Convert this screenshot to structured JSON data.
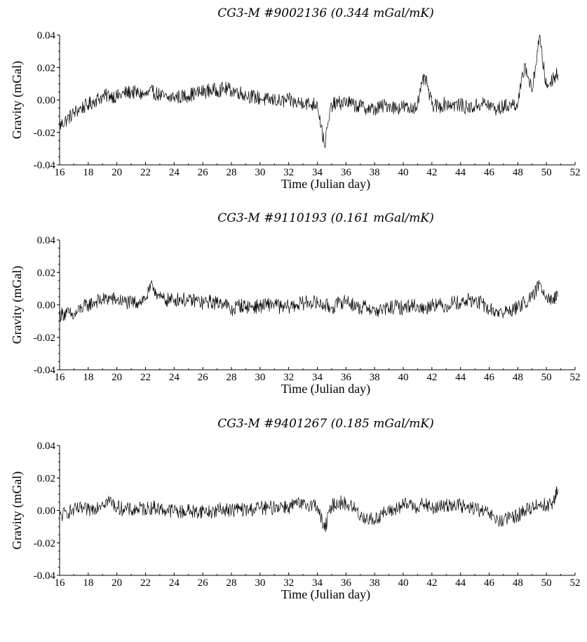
{
  "chart_data": [
    {
      "type": "line",
      "title": "CG3-M #9002136 (0.344 mGal/mK)",
      "xlabel": "Time (Julian day)",
      "ylabel": "Gravity (mGal)",
      "xlim": [
        16,
        52
      ],
      "ylim": [
        -0.04,
        0.04
      ],
      "xticks": [
        "16",
        "18",
        "20",
        "22",
        "24",
        "26",
        "28",
        "30",
        "32",
        "34",
        "36",
        "38",
        "40",
        "42",
        "44",
        "46",
        "48",
        "50",
        "52"
      ],
      "yticks": [
        "0.04",
        "0.02",
        "0.00",
        "-0.02",
        "-0.04"
      ],
      "grid": false,
      "series": [
        {
          "x": [
            16.0,
            16.5,
            17.0,
            17.5,
            18.0,
            18.5,
            19.0,
            19.5,
            20.0,
            20.5,
            21.0,
            21.5,
            22.0,
            22.5,
            23.0,
            23.5,
            24.0,
            24.5,
            25.0,
            25.5,
            26.0,
            26.5,
            27.0,
            27.5,
            28.0,
            28.5,
            29.0,
            29.5,
            30.0,
            30.5,
            31.0,
            31.5,
            32.0,
            32.5,
            33.0,
            33.5,
            34.0,
            34.5,
            35.0,
            35.5,
            36.0,
            36.5,
            37.0,
            37.5,
            38.0,
            38.5,
            39.0,
            39.5,
            40.0,
            40.5,
            41.0,
            41.5,
            42.0,
            42.5,
            43.0,
            43.5,
            44.0,
            44.5,
            45.0,
            45.5,
            46.0,
            46.5,
            47.0,
            47.5,
            48.0,
            48.5,
            49.0,
            49.5,
            50.0,
            50.5,
            50.8
          ],
          "y": [
            -0.016,
            -0.012,
            -0.008,
            -0.005,
            -0.003,
            0.0,
            0.002,
            0.003,
            0.002,
            0.004,
            0.005,
            0.004,
            0.003,
            0.005,
            0.003,
            0.001,
            0.002,
            0.002,
            0.003,
            0.004,
            0.005,
            0.006,
            0.006,
            0.007,
            0.006,
            0.005,
            0.003,
            0.002,
            0.001,
            0.0,
            0.0,
            -0.001,
            0.0,
            -0.002,
            -0.001,
            -0.003,
            -0.002,
            -0.028,
            -0.003,
            -0.002,
            -0.001,
            -0.003,
            -0.004,
            -0.005,
            -0.006,
            -0.004,
            -0.003,
            -0.005,
            -0.004,
            -0.006,
            -0.002,
            0.015,
            -0.003,
            -0.004,
            -0.002,
            -0.003,
            -0.003,
            -0.005,
            -0.004,
            -0.002,
            -0.003,
            -0.006,
            -0.004,
            -0.003,
            -0.002,
            0.022,
            0.005,
            0.039,
            0.008,
            0.014,
            0.016
          ]
        }
      ]
    },
    {
      "type": "line",
      "title": "CG3-M #9110193 (0.161 mGal/mK)",
      "xlabel": "Time (Julian day)",
      "ylabel": "Gravity (mGal)",
      "xlim": [
        16,
        52
      ],
      "ylim": [
        -0.04,
        0.04
      ],
      "xticks": [
        "16",
        "18",
        "20",
        "22",
        "24",
        "26",
        "28",
        "30",
        "32",
        "34",
        "36",
        "38",
        "40",
        "42",
        "44",
        "46",
        "48",
        "50",
        "52"
      ],
      "yticks": [
        "0.04",
        "0.02",
        "0.00",
        "-0.02",
        "-0.04"
      ],
      "grid": false,
      "series": [
        {
          "x": [
            16.0,
            16.5,
            17.0,
            17.5,
            18.0,
            18.5,
            19.0,
            19.5,
            20.0,
            20.5,
            21.0,
            21.5,
            22.0,
            22.5,
            23.0,
            23.5,
            24.0,
            24.5,
            25.0,
            25.5,
            26.0,
            26.5,
            27.0,
            27.5,
            28.0,
            28.5,
            29.0,
            29.5,
            30.0,
            30.5,
            31.0,
            31.5,
            32.0,
            32.5,
            33.0,
            33.5,
            34.0,
            34.5,
            35.0,
            35.5,
            36.0,
            36.5,
            37.0,
            37.5,
            38.0,
            38.5,
            39.0,
            39.5,
            40.0,
            40.5,
            41.0,
            41.5,
            42.0,
            42.5,
            43.0,
            43.5,
            44.0,
            44.5,
            45.0,
            45.5,
            46.0,
            46.5,
            47.0,
            47.5,
            48.0,
            48.5,
            49.0,
            49.5,
            50.0,
            50.5,
            50.8
          ],
          "y": [
            -0.006,
            -0.005,
            -0.007,
            -0.002,
            0.0,
            0.002,
            0.003,
            0.004,
            0.003,
            0.002,
            0.001,
            0.002,
            0.004,
            0.012,
            0.004,
            0.003,
            0.003,
            0.004,
            0.002,
            0.003,
            0.001,
            0.002,
            0.001,
            0.002,
            -0.004,
            0.0,
            -0.001,
            -0.001,
            -0.001,
            0.0,
            0.001,
            -0.002,
            -0.001,
            0.0,
            0.001,
            0.002,
            0.001,
            0.0,
            -0.002,
            0.001,
            0.003,
            0.0,
            -0.002,
            -0.001,
            -0.004,
            -0.003,
            -0.002,
            -0.001,
            -0.002,
            0.0,
            -0.001,
            -0.003,
            0.001,
            0.0,
            -0.001,
            0.002,
            0.001,
            0.003,
            0.002,
            0.001,
            -0.003,
            -0.004,
            -0.005,
            -0.003,
            -0.002,
            0.002,
            0.004,
            0.013,
            0.006,
            0.003,
            0.005
          ]
        }
      ]
    },
    {
      "type": "line",
      "title": "CG3-M #9401267 (0.185 mGal/mK)",
      "xlabel": "Time (Julian day)",
      "ylabel": "Gravity (mGal)",
      "xlim": [
        16,
        52
      ],
      "ylim": [
        -0.04,
        0.04
      ],
      "xticks": [
        "16",
        "18",
        "20",
        "22",
        "24",
        "26",
        "28",
        "30",
        "32",
        "34",
        "36",
        "38",
        "40",
        "42",
        "44",
        "46",
        "48",
        "50",
        "52"
      ],
      "yticks": [
        "0.04",
        "0.02",
        "0.00",
        "-0.02",
        "-0.04"
      ],
      "grid": false,
      "series": [
        {
          "x": [
            16.0,
            16.5,
            17.0,
            17.5,
            18.0,
            18.5,
            19.0,
            19.5,
            20.0,
            20.5,
            21.0,
            21.5,
            22.0,
            22.5,
            23.0,
            23.5,
            24.0,
            24.5,
            25.0,
            25.5,
            26.0,
            26.5,
            27.0,
            27.5,
            28.0,
            28.5,
            29.0,
            29.5,
            30.0,
            30.5,
            31.0,
            31.5,
            32.0,
            32.5,
            33.0,
            33.5,
            34.0,
            34.5,
            35.0,
            35.5,
            36.0,
            36.5,
            37.0,
            37.5,
            38.0,
            38.5,
            39.0,
            39.5,
            40.0,
            40.5,
            41.0,
            41.5,
            42.0,
            42.5,
            43.0,
            43.5,
            44.0,
            44.5,
            45.0,
            45.5,
            46.0,
            46.5,
            47.0,
            47.5,
            48.0,
            48.5,
            49.0,
            49.5,
            50.0,
            50.5,
            50.8
          ],
          "y": [
            -0.004,
            -0.001,
            0.0,
            0.001,
            0.0,
            0.002,
            0.005,
            0.006,
            0.002,
            0.001,
            0.0,
            0.001,
            0.001,
            0.002,
            0.001,
            0.0,
            0.0,
            -0.001,
            0.0,
            -0.001,
            0.0,
            -0.001,
            0.0,
            0.001,
            0.0,
            0.001,
            0.0,
            0.001,
            0.002,
            0.001,
            0.002,
            0.003,
            0.002,
            0.004,
            0.003,
            0.004,
            0.003,
            -0.012,
            0.003,
            0.005,
            0.004,
            0.002,
            -0.003,
            -0.005,
            -0.006,
            -0.002,
            -0.001,
            0.001,
            0.003,
            0.004,
            0.002,
            0.004,
            0.001,
            0.002,
            0.003,
            0.004,
            0.003,
            0.001,
            0.002,
            -0.001,
            -0.002,
            -0.006,
            -0.007,
            -0.004,
            -0.003,
            0.0,
            0.002,
            0.004,
            0.003,
            0.005,
            0.013
          ]
        }
      ]
    }
  ]
}
